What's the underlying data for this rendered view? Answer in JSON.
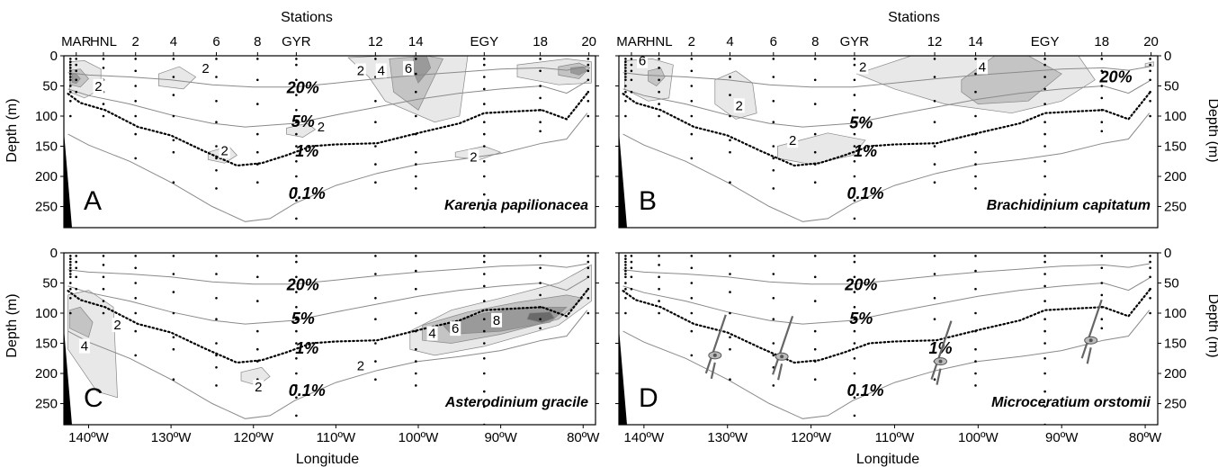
{
  "common": {
    "x_axis_title": "Longitude",
    "y_axis_title": "Depth (m)",
    "top_axis_title": "Stations",
    "station_ticks": [
      {
        "label": "MAR",
        "lon": -141.5
      },
      {
        "label": "HNL",
        "lon": -138.2
      },
      {
        "label": "2",
        "lon": -134.3
      },
      {
        "label": "4",
        "lon": -129.7
      },
      {
        "label": "6",
        "lon": -124.5
      },
      {
        "label": "8",
        "lon": -119.5
      },
      {
        "label": "GYR",
        "lon": -114.8
      },
      {
        "label": "12",
        "lon": -105.2
      },
      {
        "label": "14",
        "lon": -100.3
      },
      {
        "label": "EGY",
        "lon": -92.0
      },
      {
        "label": "18",
        "lon": -85.2
      },
      {
        "label": "20",
        "lon": -79.3
      }
    ],
    "x_ticks": [
      {
        "label": "140ºW",
        "lon": -140
      },
      {
        "label": "130ºW",
        "lon": -130
      },
      {
        "label": "120ºW",
        "lon": -120
      },
      {
        "label": "110ºW",
        "lon": -110
      },
      {
        "label": "100ºW",
        "lon": -100
      },
      {
        "label": "90ºW",
        "lon": -90
      },
      {
        "label": "80ºW",
        "lon": -80
      }
    ],
    "y_ticks": [
      {
        "label": "0",
        "depth": 0
      },
      {
        "label": "50",
        "depth": 50
      },
      {
        "label": "100",
        "depth": 100
      },
      {
        "label": "150",
        "depth": 150
      },
      {
        "label": "200",
        "depth": 200
      },
      {
        "label": "250",
        "depth": 250
      }
    ],
    "xlim": [
      -143,
      -78.5
    ],
    "ylim": [
      0,
      285
    ]
  },
  "isolumes": [
    {
      "label": "20%",
      "style": "solid",
      "lon": [
        -142.5,
        -140,
        -135,
        -130,
        -125,
        -120,
        -115,
        -110,
        -105,
        -100,
        -95,
        -90,
        -85,
        -82,
        -79.5
      ],
      "depth": [
        28,
        32,
        35,
        40,
        48,
        52,
        52,
        45,
        38,
        32,
        27,
        22,
        20,
        24,
        18
      ]
    },
    {
      "label": "5%",
      "style": "solid",
      "lon": [
        -142.5,
        -140,
        -135,
        -130,
        -125,
        -121,
        -115,
        -110,
        -105,
        -100,
        -95,
        -90,
        -85,
        -82,
        -79.5
      ],
      "depth": [
        55,
        66,
        80,
        98,
        112,
        118,
        112,
        98,
        85,
        72,
        62,
        55,
        50,
        62,
        42
      ]
    },
    {
      "label": "1%",
      "style": "dotted",
      "lon": [
        -142.5,
        -141,
        -138,
        -134,
        -130,
        -126,
        -122,
        -119,
        -116,
        -113,
        -110,
        -105,
        -100,
        -95,
        -92,
        -88,
        -85,
        -82,
        -79.5
      ],
      "depth": [
        63,
        78,
        90,
        118,
        132,
        158,
        182,
        178,
        165,
        150,
        147,
        145,
        128,
        112,
        95,
        92,
        90,
        105,
        62
      ]
    },
    {
      "label": "0.1%",
      "style": "solid",
      "lon": [
        -142.5,
        -140,
        -135,
        -130,
        -125,
        -121,
        -118,
        -115,
        -110,
        -105,
        -100,
        -95,
        -90,
        -85,
        -82,
        -79.5
      ],
      "depth": [
        130,
        148,
        175,
        210,
        250,
        275,
        270,
        245,
        215,
        195,
        180,
        172,
        162,
        145,
        138,
        95
      ]
    }
  ],
  "panels": [
    {
      "letter": "A",
      "species": "Karenia papilionacea",
      "isolume_label_pos": [
        {
          "label": "20%",
          "lon": -114,
          "depth": 62
        },
        {
          "label": "5%",
          "lon": -114,
          "depth": 118
        },
        {
          "label": "1%",
          "lon": -113.5,
          "depth": 167
        },
        {
          "label": "0.1%",
          "lon": -113.5,
          "depth": 237
        }
      ],
      "blobs": [
        {
          "level": 2,
          "lon": [
            -142.3,
            -140.5,
            -138.5,
            -138.5,
            -140.5,
            -142.3
          ],
          "depth": [
            10,
            8,
            22,
            55,
            70,
            60
          ]
        },
        {
          "level": 4,
          "lon": [
            -142.2,
            -141,
            -140,
            -141,
            -142.2
          ],
          "depth": [
            24,
            22,
            38,
            52,
            48
          ]
        },
        {
          "level": 6,
          "lon": [
            -142,
            -141.5,
            -141,
            -141.5,
            -142
          ],
          "depth": [
            30,
            30,
            38,
            46,
            44
          ]
        },
        {
          "level": 2,
          "lon": [
            -131.5,
            -129,
            -127,
            -128.5,
            -131.5
          ],
          "depth": [
            30,
            18,
            35,
            55,
            50
          ]
        },
        {
          "level": 2,
          "lon": [
            -108.5,
            -104,
            -98,
            -94,
            -95,
            -98,
            -104,
            -106
          ],
          "depth": [
            3,
            0,
            0,
            0,
            100,
            110,
            75,
            35
          ]
        },
        {
          "level": 4,
          "lon": [
            -103.5,
            -99,
            -97,
            -100,
            -103
          ],
          "depth": [
            5,
            0,
            5,
            90,
            60
          ]
        },
        {
          "level": 6,
          "lon": [
            -100.5,
            -99,
            -98.5,
            -100,
            -100.8
          ],
          "depth": [
            0,
            0,
            20,
            45,
            20
          ]
        },
        {
          "level": 2,
          "lon": [
            -88,
            -82,
            -79,
            -79,
            -83,
            -88
          ],
          "depth": [
            15,
            5,
            10,
            45,
            48,
            35
          ]
        },
        {
          "level": 4,
          "lon": [
            -83,
            -80.5,
            -79.2,
            -80.5,
            -83
          ],
          "depth": [
            18,
            12,
            20,
            38,
            32
          ]
        },
        {
          "level": 6,
          "lon": [
            -81.5,
            -80,
            -79.5,
            -80.5,
            -81.5
          ],
          "depth": [
            20,
            18,
            24,
            32,
            28
          ]
        },
        {
          "level": 2,
          "lon": [
            -125.5,
            -123,
            -122,
            -123.5,
            -125.5
          ],
          "depth": [
            160,
            150,
            165,
            178,
            172
          ]
        },
        {
          "level": 2,
          "lon": [
            -116,
            -113.5,
            -112.5,
            -114,
            -116
          ],
          "depth": [
            120,
            112,
            122,
            135,
            130
          ]
        },
        {
          "level": 2,
          "lon": [
            -95.5,
            -92,
            -90,
            -92.5,
            -95.5
          ],
          "depth": [
            160,
            150,
            160,
            172,
            168
          ]
        }
      ],
      "contour_labels": [
        {
          "text": "2",
          "lon": -138.8,
          "depth": 58
        },
        {
          "text": "2",
          "lon": -125.8,
          "depth": 28
        },
        {
          "text": "2",
          "lon": -107,
          "depth": 32
        },
        {
          "text": "4",
          "lon": -104.5,
          "depth": 32
        },
        {
          "text": "6",
          "lon": -101.2,
          "depth": 28
        },
        {
          "text": "2",
          "lon": -123.5,
          "depth": 165
        },
        {
          "text": "2",
          "lon": -111.8,
          "depth": 125
        },
        {
          "text": "2",
          "lon": -93.3,
          "depth": 175
        }
      ],
      "species_icons": []
    },
    {
      "letter": "B",
      "species": "Brachidinium capitatum",
      "isolume_label_pos": [
        {
          "label": "20%",
          "lon": -83.5,
          "depth": 44
        },
        {
          "label": "5%",
          "lon": -114,
          "depth": 120
        },
        {
          "label": "1%",
          "lon": -113.5,
          "depth": 167
        },
        {
          "label": "0.1%",
          "lon": -113.5,
          "depth": 237
        }
      ],
      "blobs": [
        {
          "level": 2,
          "lon": [
            -142.3,
            -139,
            -136.5,
            -137,
            -139.5,
            -142.3
          ],
          "depth": [
            8,
            5,
            15,
            70,
            75,
            55
          ]
        },
        {
          "level": 4,
          "lon": [
            -139.5,
            -138,
            -137.5,
            -138.5,
            -139.5
          ],
          "depth": [
            25,
            20,
            35,
            50,
            42
          ]
        },
        {
          "level": 2,
          "lon": [
            -131.5,
            -129,
            -127,
            -126.5,
            -129,
            -131.5
          ],
          "depth": [
            40,
            25,
            45,
            95,
            105,
            80
          ]
        },
        {
          "level": 2,
          "lon": [
            -114.5,
            -108,
            -100,
            -92,
            -88,
            -86,
            -90,
            -96,
            -104,
            -110
          ],
          "depth": [
            30,
            0,
            0,
            0,
            0,
            40,
            75,
            95,
            80,
            55
          ]
        },
        {
          "level": 4,
          "lon": [
            -102,
            -98,
            -94,
            -90,
            -94,
            -100,
            -102
          ],
          "depth": [
            40,
            0,
            0,
            30,
            75,
            80,
            60
          ]
        },
        {
          "level": 2,
          "lon": [
            -124,
            -118,
            -113.5,
            -115,
            -120,
            -124
          ],
          "depth": [
            150,
            128,
            140,
            165,
            180,
            170
          ]
        },
        {
          "level": 2,
          "lon": [
            -80,
            -79,
            -79,
            -80
          ],
          "depth": [
            13,
            10,
            17,
            18
          ]
        }
      ],
      "contour_labels": [
        {
          "text": "6",
          "lon": -140.2,
          "depth": 16
        },
        {
          "text": "2",
          "lon": -128.6,
          "depth": 90
        },
        {
          "text": "2",
          "lon": -113.8,
          "depth": 26
        },
        {
          "text": "4",
          "lon": -99.5,
          "depth": 26
        },
        {
          "text": "2",
          "lon": -122.2,
          "depth": 148
        }
      ],
      "species_icons": []
    },
    {
      "letter": "C",
      "species": "Asterodinium gracile",
      "isolume_label_pos": [
        {
          "label": "20%",
          "lon": -114,
          "depth": 62
        },
        {
          "label": "5%",
          "lon": -114,
          "depth": 118
        },
        {
          "label": "1%",
          "lon": -113.5,
          "depth": 167
        },
        {
          "label": "0.1%",
          "lon": -113.5,
          "depth": 237
        }
      ],
      "blobs": [
        {
          "level": 2,
          "lon": [
            -142.5,
            -140,
            -137,
            -136.5,
            -139,
            -142.5
          ],
          "depth": [
            70,
            62,
            90,
            240,
            230,
            160
          ]
        },
        {
          "level": 4,
          "lon": [
            -142.3,
            -141,
            -139.5,
            -140,
            -142.3
          ],
          "depth": [
            95,
            90,
            115,
            140,
            125
          ]
        },
        {
          "level": 2,
          "lon": [
            -101,
            -96,
            -90,
            -83,
            -79,
            -79,
            -83,
            -92,
            -98,
            -101
          ],
          "depth": [
            130,
            95,
            75,
            50,
            20,
            80,
            120,
            155,
            170,
            160
          ]
        },
        {
          "level": 4,
          "lon": [
            -99.5,
            -94,
            -88,
            -82,
            -80,
            -83,
            -90,
            -96,
            -99.5
          ],
          "depth": [
            120,
            98,
            82,
            70,
            75,
            110,
            135,
            150,
            145
          ]
        },
        {
          "level": 6,
          "lon": [
            -97,
            -92,
            -86,
            -82,
            -84,
            -90,
            -96
          ],
          "depth": [
            120,
            100,
            90,
            90,
            115,
            130,
            135
          ]
        },
        {
          "level": 8,
          "lon": [
            -86.5,
            -84,
            -83.5,
            -85,
            -86.8
          ],
          "depth": [
            100,
            98,
            108,
            116,
            110
          ]
        },
        {
          "level": 2,
          "lon": [
            -121.5,
            -119,
            -118,
            -119.5,
            -121.5
          ],
          "depth": [
            198,
            190,
            205,
            220,
            212
          ]
        }
      ],
      "contour_labels": [
        {
          "text": "2",
          "lon": -136.5,
          "depth": 127
        },
        {
          "text": "4",
          "lon": -140.5,
          "depth": 162
        },
        {
          "text": "4",
          "lon": -98.3,
          "depth": 141
        },
        {
          "text": "6",
          "lon": -95.5,
          "depth": 133
        },
        {
          "text": "8",
          "lon": -90.5,
          "depth": 119
        },
        {
          "text": "2",
          "lon": -107,
          "depth": 195
        },
        {
          "text": "2",
          "lon": -119.4,
          "depth": 230
        }
      ],
      "species_icons": []
    },
    {
      "letter": "D",
      "species": "Microceratium orstomii",
      "isolume_label_pos": [
        {
          "label": "20%",
          "lon": -114,
          "depth": 62
        },
        {
          "label": "5%",
          "lon": -114,
          "depth": 118
        },
        {
          "label": "1%",
          "lon": -104.5,
          "depth": 167
        },
        {
          "label": "0.1%",
          "lon": -113.5,
          "depth": 237
        }
      ],
      "blobs": [],
      "contour_labels": [],
      "species_icons": [
        {
          "lon": -131.5,
          "depth": 170
        },
        {
          "lon": -123.5,
          "depth": 172
        },
        {
          "lon": -104.5,
          "depth": 180
        },
        {
          "lon": -86.5,
          "depth": 145
        }
      ]
    }
  ],
  "sample_stations": [
    {
      "lon": -142.2,
      "depths": [
        5,
        10,
        15,
        20,
        25,
        30,
        35,
        40,
        50,
        60,
        75,
        100
      ]
    },
    {
      "lon": -141.5,
      "depths": [
        5,
        15,
        25,
        40,
        60
      ]
    },
    {
      "lon": -138.2,
      "depths": [
        5,
        20,
        40,
        60,
        80,
        100
      ]
    },
    {
      "lon": -134.3,
      "depths": [
        5,
        25,
        50,
        75,
        100,
        130,
        170
      ]
    },
    {
      "lon": -129.7,
      "depths": [
        5,
        35,
        65,
        100,
        140,
        160,
        210
      ]
    },
    {
      "lon": -124.5,
      "depths": [
        5,
        35,
        75,
        110,
        150,
        170,
        190,
        220
      ]
    },
    {
      "lon": -119.5,
      "depths": [
        5,
        40,
        80,
        130,
        160,
        180,
        210
      ]
    },
    {
      "lon": -114.8,
      "depths": [
        5,
        15,
        40,
        65,
        90,
        110,
        130,
        150,
        175,
        200,
        220,
        240,
        270
      ]
    },
    {
      "lon": -105.2,
      "depths": [
        5,
        35,
        75,
        110,
        150,
        180,
        210
      ]
    },
    {
      "lon": -100.3,
      "depths": [
        5,
        30,
        60,
        100,
        130,
        160,
        180,
        200,
        220
      ]
    },
    {
      "lon": -92.0,
      "depths": [
        5,
        15,
        35,
        55,
        80,
        110,
        130,
        150,
        175,
        200,
        230,
        255,
        285
      ]
    },
    {
      "lon": -85.2,
      "depths": [
        5,
        25,
        50,
        70,
        90,
        110,
        125
      ]
    },
    {
      "lon": -79.4,
      "depths": [
        5,
        15,
        25,
        40,
        60,
        75,
        100
      ]
    }
  ],
  "chart_data": [
    {
      "type": "area",
      "panel": "A",
      "species": "Karenia papilionacea",
      "xlabel": "",
      "ylabel": "Depth (m)",
      "contour_levels": [
        2,
        4,
        6
      ],
      "ylim": [
        0,
        285
      ]
    },
    {
      "type": "area",
      "panel": "B",
      "species": "Brachidinium capitatum",
      "xlabel": "",
      "ylabel": "Depth (m)",
      "contour_levels": [
        2,
        4,
        6
      ],
      "ylim": [
        0,
        285
      ]
    },
    {
      "type": "area",
      "panel": "C",
      "species": "Asterodinium gracile",
      "xlabel": "Longitude",
      "ylabel": "Depth (m)",
      "contour_levels": [
        2,
        4,
        6,
        8
      ],
      "ylim": [
        0,
        285
      ]
    },
    {
      "type": "scatter",
      "panel": "D",
      "species": "Microceratium orstomii",
      "xlabel": "Longitude",
      "ylabel": "Depth (m)",
      "ylim": [
        0,
        285
      ]
    }
  ]
}
